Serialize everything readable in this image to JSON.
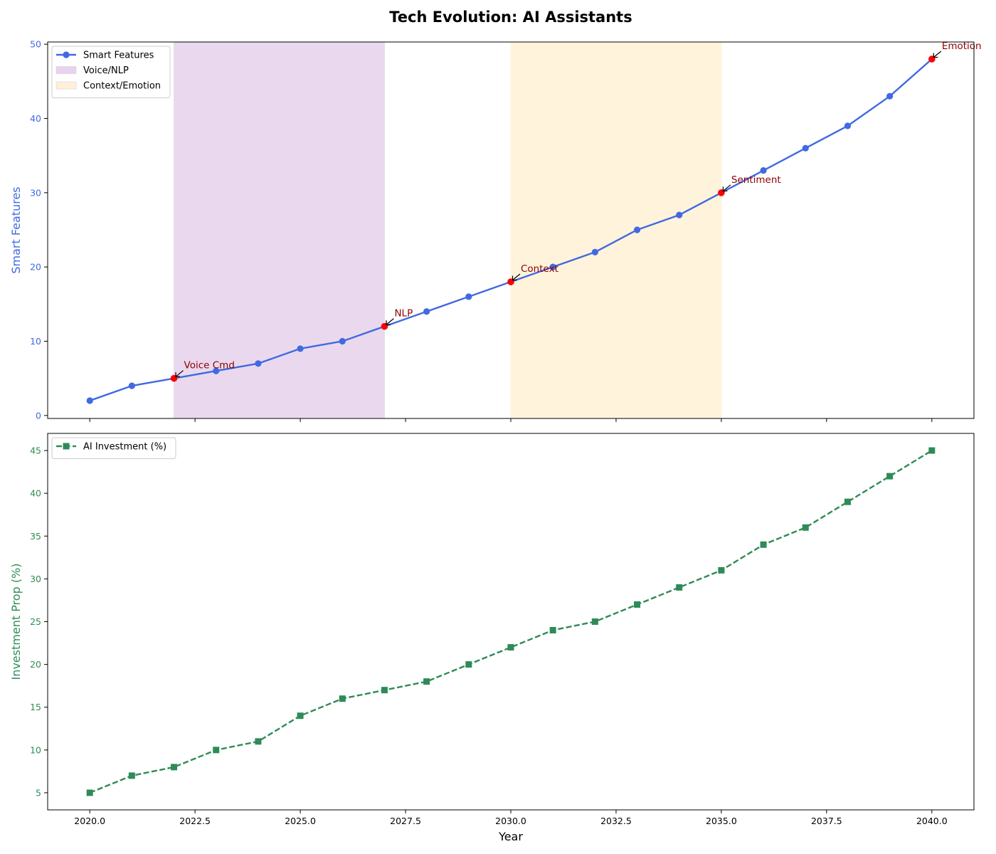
{
  "figure": {
    "title": "Tech Evolution: AI Assistants"
  },
  "chart_data": [
    {
      "type": "line",
      "ylabel": "Smart Features",
      "xlabel": "",
      "xlim": [
        2019.0,
        2041.0
      ],
      "ylim": [
        -0.4,
        50.3
      ],
      "yticks": [
        0,
        10,
        20,
        30,
        40,
        50
      ],
      "axis_color": "#4169e1",
      "grid": false,
      "legend_position": "top-left",
      "x": [
        2020,
        2021,
        2022,
        2023,
        2024,
        2025,
        2026,
        2027,
        2028,
        2029,
        2030,
        2031,
        2032,
        2033,
        2034,
        2035,
        2036,
        2037,
        2038,
        2039,
        2040
      ],
      "series": [
        {
          "name": "Smart Features",
          "color": "#4169e1",
          "marker": "circle",
          "linestyle": "solid",
          "values": [
            2,
            4,
            5,
            6,
            7,
            9,
            10,
            12,
            14,
            16,
            18,
            20,
            22,
            25,
            27,
            30,
            33,
            36,
            39,
            43,
            48
          ]
        }
      ],
      "shaded_regions": [
        {
          "name": "Voice/NLP",
          "x_start": 2022,
          "x_end": 2027,
          "color": "#e7d3ec"
        },
        {
          "name": "Context/Emotion",
          "x_start": 2030,
          "x_end": 2035,
          "color": "#fff1d6"
        }
      ],
      "annotations": [
        {
          "text": "Voice Cmd",
          "x": 2022,
          "y": 5,
          "color": "#ff0000"
        },
        {
          "text": "NLP",
          "x": 2027,
          "y": 12,
          "color": "#ff0000"
        },
        {
          "text": "Context",
          "x": 2030,
          "y": 18,
          "color": "#ff0000"
        },
        {
          "text": "Sentiment",
          "x": 2035,
          "y": 30,
          "color": "#ff0000"
        },
        {
          "text": "Emotion",
          "x": 2040,
          "y": 48,
          "color": "#ff0000"
        }
      ]
    },
    {
      "type": "line",
      "ylabel": "Investment Prop (%)",
      "xlabel": "Year",
      "xlim": [
        2019.0,
        2041.0
      ],
      "ylim": [
        3.0,
        47.0
      ],
      "yticks": [
        5,
        10,
        15,
        20,
        25,
        30,
        35,
        40,
        45
      ],
      "xticks": [
        "2020.0",
        "2022.5",
        "2025.0",
        "2027.5",
        "2030.0",
        "2032.5",
        "2035.0",
        "2037.5",
        "2040.0"
      ],
      "axis_color": "#2e8b57",
      "grid": false,
      "legend_position": "top-left",
      "x": [
        2020,
        2021,
        2022,
        2023,
        2024,
        2025,
        2026,
        2027,
        2028,
        2029,
        2030,
        2031,
        2032,
        2033,
        2034,
        2035,
        2036,
        2037,
        2038,
        2039,
        2040
      ],
      "series": [
        {
          "name": "AI Investment (%)",
          "color": "#2e8b57",
          "marker": "square",
          "linestyle": "dashed",
          "values": [
            5,
            7,
            8,
            10,
            11,
            14,
            16,
            17,
            18,
            20,
            22,
            24,
            25,
            27,
            29,
            31,
            34,
            36,
            39,
            42,
            45
          ]
        }
      ]
    }
  ]
}
